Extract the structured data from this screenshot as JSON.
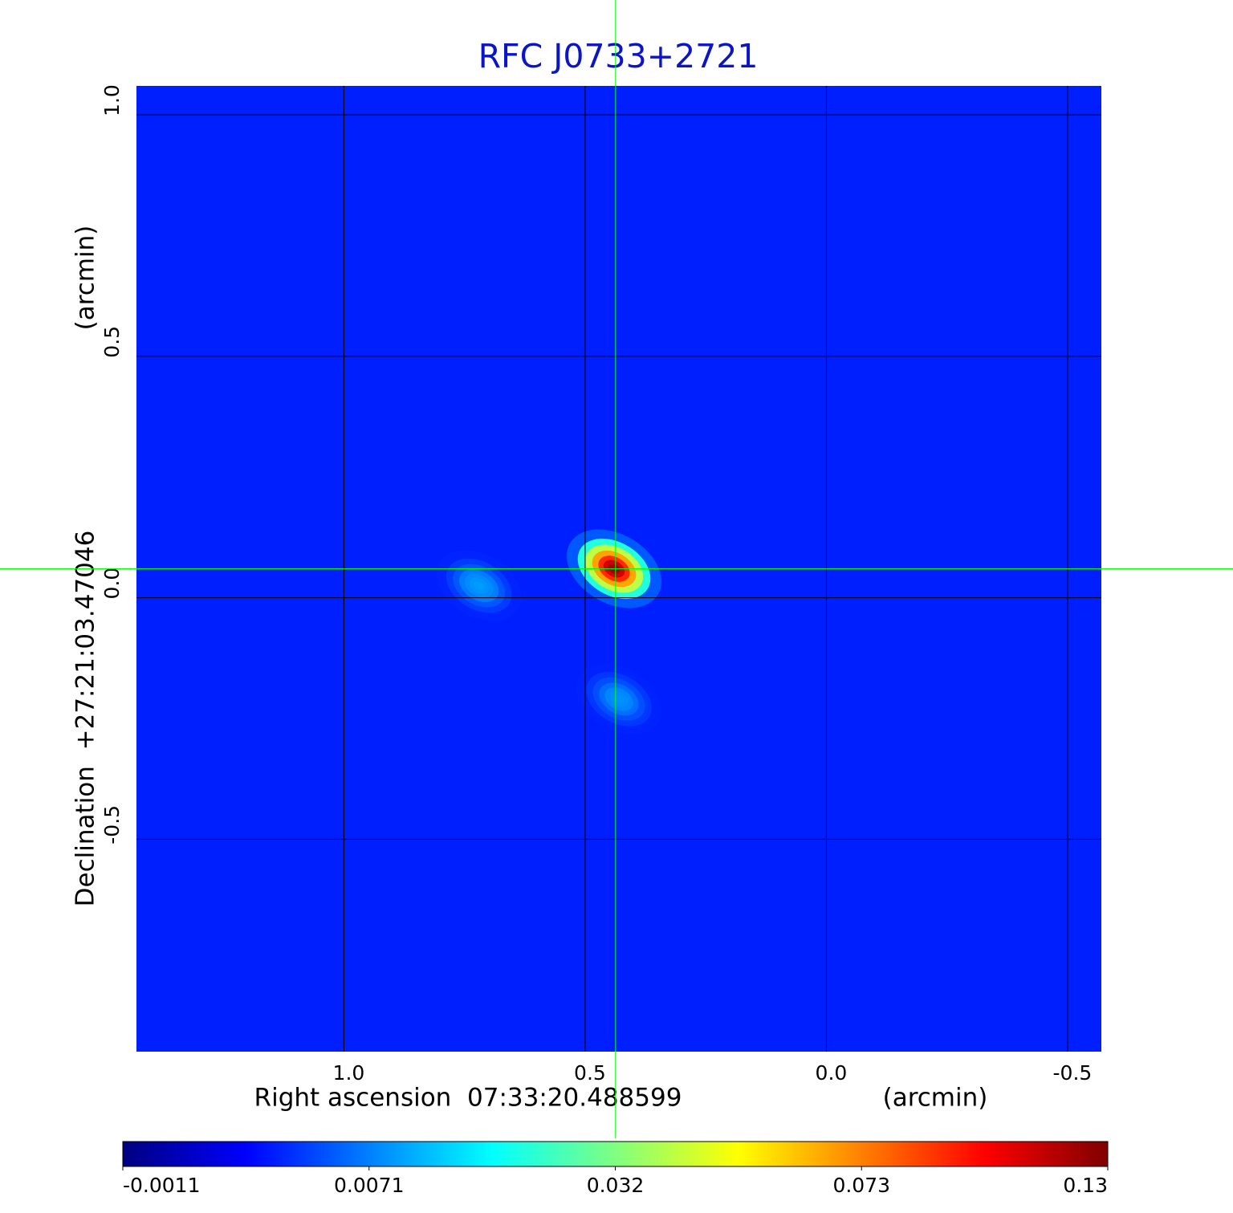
{
  "chart_data": {
    "type": "heatmap",
    "title": "RFC J0733+2721",
    "xlabel": "Right ascension  07:33:20.488599",
    "xunit": "(arcmin)",
    "ylabel": "Declination  +27:21:03.47046",
    "yunit": "(arcmin)",
    "xlim": [
      1.43,
      -0.57
    ],
    "ylim": [
      -0.94,
      1.06
    ],
    "xticks": [
      {
        "value": 1,
        "label": "1.0"
      },
      0.5,
      {
        "value": 0,
        "label": "0.0"
      },
      -0.5
    ],
    "yticks": [
      -0.5,
      {
        "value": 0,
        "label": "0.0"
      },
      0.5,
      {
        "value": 1,
        "label": "1.0"
      }
    ],
    "grid": true,
    "grid_color": "#000000",
    "background_level": 0.004,
    "sources": [
      {
        "x": 0.44,
        "y": 0.06,
        "peak": 0.13
      },
      {
        "x": 0.72,
        "y": 0.025,
        "peak": 0.01
      },
      {
        "x": 0.43,
        "y": -0.21,
        "peak": 0.009
      }
    ],
    "crosshair": {
      "x": 0.437,
      "y": 0.06,
      "color": "#00ff00"
    },
    "colorbar": {
      "ticks": [
        -0.0011,
        0.0071,
        0.032,
        0.073,
        0.13
      ],
      "colormap": [
        "#000080",
        "#0000ff",
        "#0080ff",
        "#00ffff",
        "#80ff80",
        "#ffff00",
        "#ff8000",
        "#ff0000",
        "#800000"
      ]
    }
  }
}
